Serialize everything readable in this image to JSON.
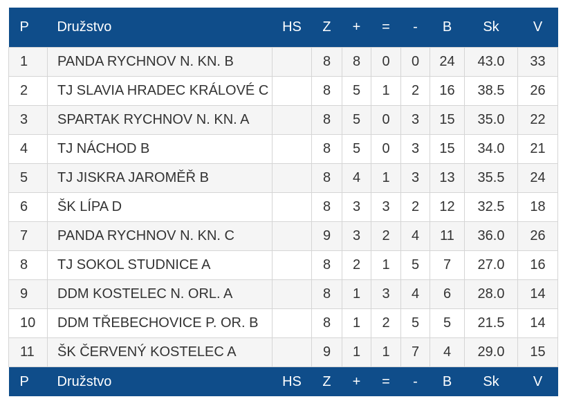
{
  "header": {
    "p": "P",
    "team": "Družstvo",
    "hs": "HS",
    "z": "Z",
    "plus": "+",
    "eq": "=",
    "minus": "-",
    "b": "B",
    "sk": "Sk",
    "v": "V"
  },
  "rows": [
    {
      "p": "1",
      "team": "PANDA RYCHNOV N. KN. B",
      "hs": "",
      "z": "8",
      "plus": "8",
      "eq": "0",
      "minus": "0",
      "b": "24",
      "sk": "43.0",
      "v": "33"
    },
    {
      "p": "2",
      "team": "TJ SLAVIA HRADEC KRÁLOVÉ C",
      "hs": "",
      "z": "8",
      "plus": "5",
      "eq": "1",
      "minus": "2",
      "b": "16",
      "sk": "38.5",
      "v": "26"
    },
    {
      "p": "3",
      "team": "SPARTAK RYCHNOV N. KN. A",
      "hs": "",
      "z": "8",
      "plus": "5",
      "eq": "0",
      "minus": "3",
      "b": "15",
      "sk": "35.0",
      "v": "22"
    },
    {
      "p": "4",
      "team": "TJ NÁCHOD B",
      "hs": "",
      "z": "8",
      "plus": "5",
      "eq": "0",
      "minus": "3",
      "b": "15",
      "sk": "34.0",
      "v": "21"
    },
    {
      "p": "5",
      "team": "TJ JISKRA JAROMĚŘ B",
      "hs": "",
      "z": "8",
      "plus": "4",
      "eq": "1",
      "minus": "3",
      "b": "13",
      "sk": "35.5",
      "v": "24"
    },
    {
      "p": "6",
      "team": "ŠK LÍPA D",
      "hs": "",
      "z": "8",
      "plus": "3",
      "eq": "3",
      "minus": "2",
      "b": "12",
      "sk": "32.5",
      "v": "18"
    },
    {
      "p": "7",
      "team": "PANDA RYCHNOV N. KN. C",
      "hs": "",
      "z": "9",
      "plus": "3",
      "eq": "2",
      "minus": "4",
      "b": "11",
      "sk": "36.0",
      "v": "26"
    },
    {
      "p": "8",
      "team": "TJ SOKOL STUDNICE A",
      "hs": "",
      "z": "8",
      "plus": "2",
      "eq": "1",
      "minus": "5",
      "b": "7",
      "sk": "27.0",
      "v": "16"
    },
    {
      "p": "9",
      "team": "DDM KOSTELEC N. ORL. A",
      "hs": "",
      "z": "8",
      "plus": "1",
      "eq": "3",
      "minus": "4",
      "b": "6",
      "sk": "28.0",
      "v": "14"
    },
    {
      "p": "10",
      "team": "DDM TŘEBECHOVICE P. OR. B",
      "hs": "",
      "z": "8",
      "plus": "1",
      "eq": "2",
      "minus": "5",
      "b": "5",
      "sk": "21.5",
      "v": "14"
    },
    {
      "p": "11",
      "team": "ŠK ČERVENÝ KOSTELEC A",
      "hs": "",
      "z": "9",
      "plus": "1",
      "eq": "1",
      "minus": "7",
      "b": "4",
      "sk": "29.0",
      "v": "15"
    }
  ],
  "colors": {
    "header_bg": "#0f4d8a",
    "header_text": "#ffffff",
    "row_alt": "#f5f5f5",
    "text": "#333333"
  }
}
